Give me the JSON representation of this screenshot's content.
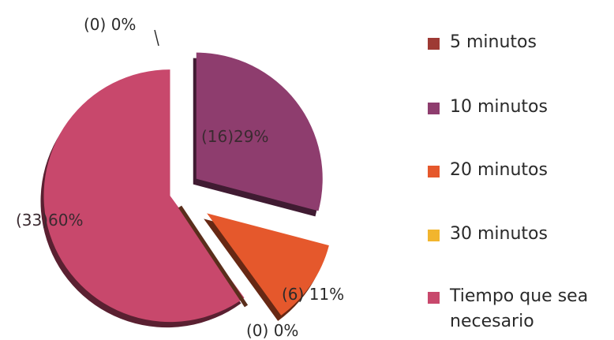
{
  "chart_data": {
    "type": "pie",
    "title": "",
    "categories": [
      "5 minutos",
      "10 minutos",
      "20 minutos",
      "30 minutos",
      "Tiempo que sea necesario"
    ],
    "values": [
      0,
      16,
      6,
      0,
      33
    ],
    "percent_labels": [
      "(0) 0%",
      "(16)29%",
      "(6) 11%",
      "(0) 0%",
      "(33)60%"
    ],
    "colors": [
      "#9e3a34",
      "#8e3d6e",
      "#e5582c",
      "#f2b52e",
      "#c8486c"
    ],
    "legend_position": "right",
    "exploded": true,
    "style": "3d"
  }
}
